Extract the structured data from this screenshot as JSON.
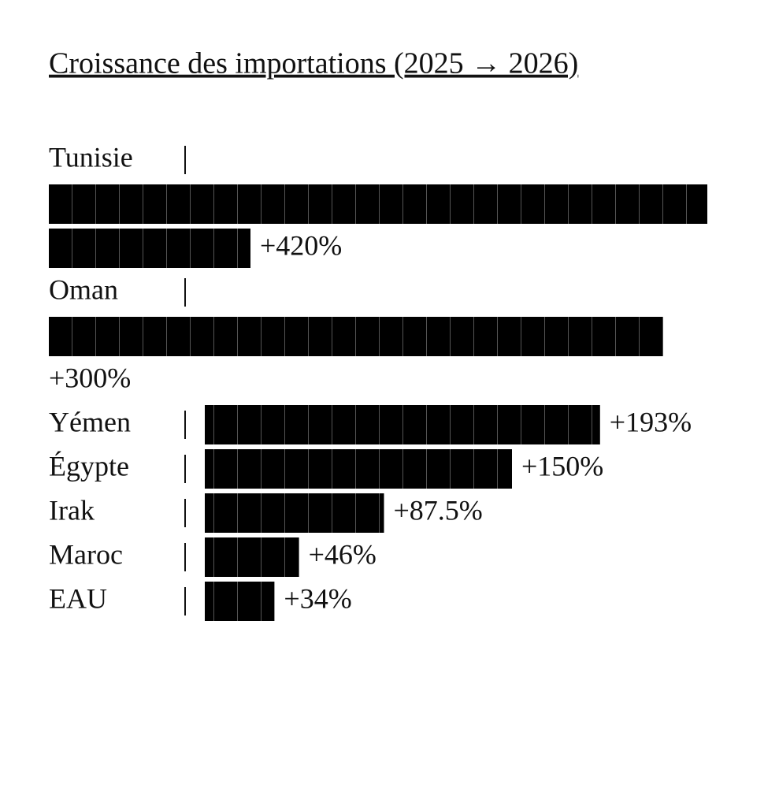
{
  "chart_data": {
    "type": "bar",
    "title": "Croissance des importations (2025 → 2026)",
    "categories": [
      "Tunisie",
      "Oman",
      "Yémen",
      "Égypte",
      "Irak",
      "Maroc",
      "EAU"
    ],
    "values": [
      420,
      300,
      193,
      150,
      87.5,
      46,
      34
    ],
    "value_labels": [
      "+420%",
      "+300%",
      "+193%",
      "+150%",
      "+87.5%",
      "+46%",
      "+34%"
    ],
    "color": "#000000"
  }
}
